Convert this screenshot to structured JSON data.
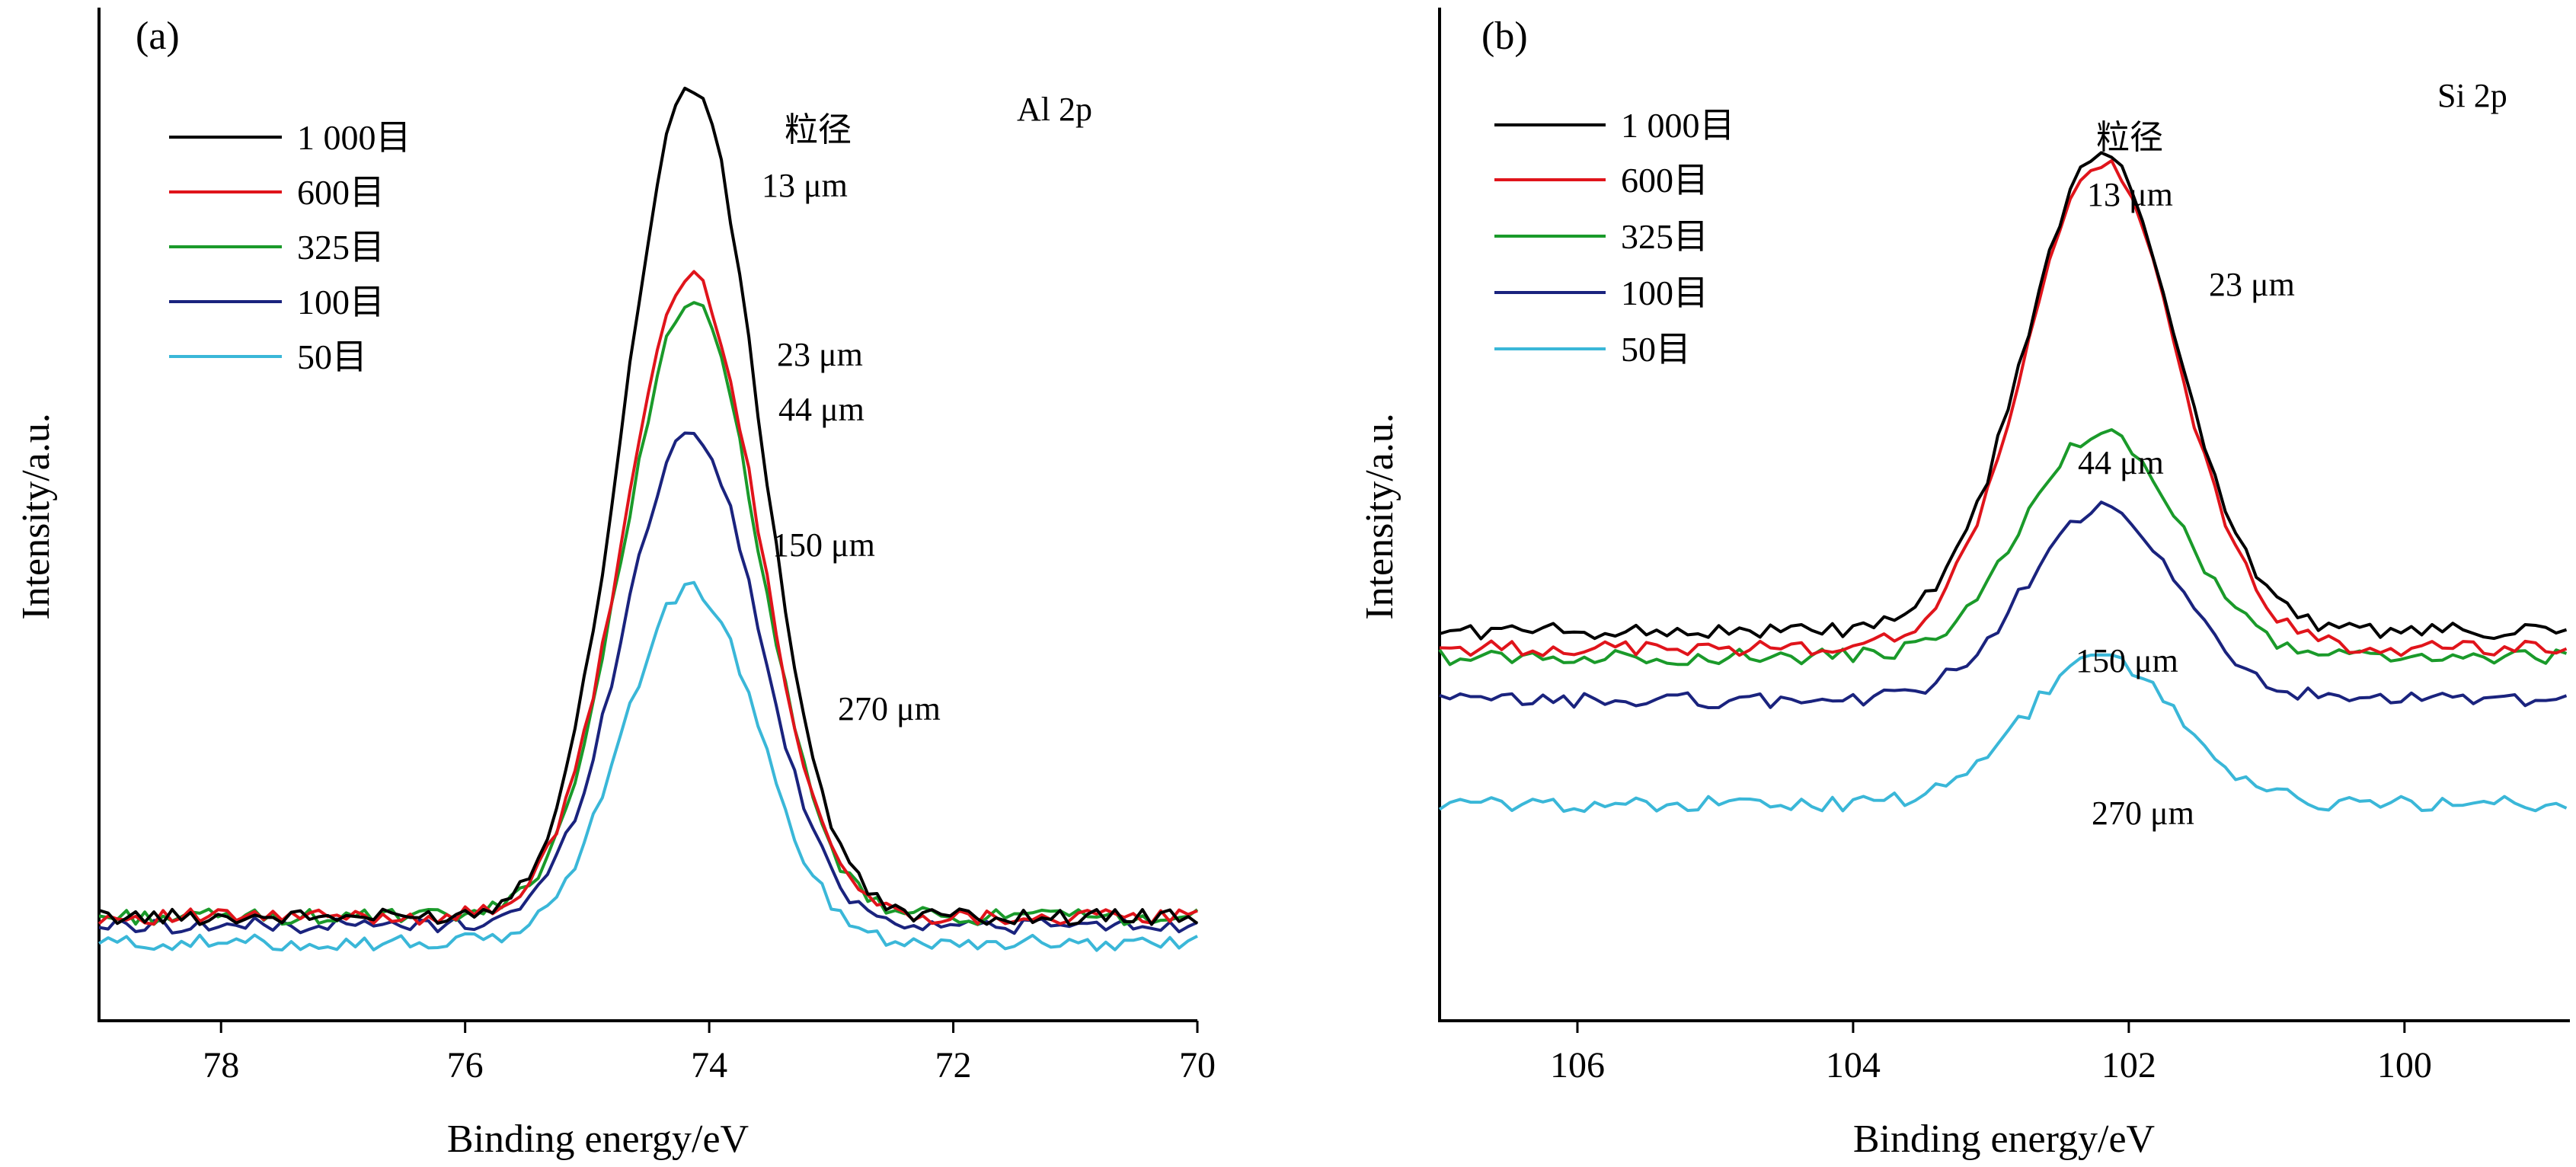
{
  "chart_data": [
    {
      "type": "line",
      "panel_label": "(a)",
      "element": "Al 2p",
      "xlabel": "Binding energy/eV",
      "ylabel": "Intensity/a.u.",
      "xlim": [
        79,
        70
      ],
      "x_reversed": true,
      "ylim": [
        -0.12,
        1.05
      ],
      "x_ticks": [
        78,
        76,
        74,
        72,
        70
      ],
      "peak_center": 74.15,
      "legend_position": "top-left",
      "annotation_header": "粒径",
      "series": [
        {
          "name": "1 000目",
          "color": "#000000",
          "peak": 0.96,
          "baseline": 0.0,
          "label": "13 μm"
        },
        {
          "name": "600目",
          "color": "#e0141b",
          "peak": 0.74,
          "baseline": 0.0,
          "label": "23 μm"
        },
        {
          "name": "325目",
          "color": "#1a9a2a",
          "peak": 0.71,
          "baseline": 0.0,
          "label": "44 μm"
        },
        {
          "name": "100目",
          "color": "#1a237e",
          "peak": 0.56,
          "baseline": -0.01,
          "label": "150 μm"
        },
        {
          "name": "50目",
          "color": "#3ab7d8",
          "peak": 0.38,
          "baseline": -0.03,
          "label": "270 μm"
        }
      ]
    },
    {
      "type": "line",
      "panel_label": "(b)",
      "element": "Si 2p",
      "xlabel": "Binding energy/eV",
      "ylabel": "Intensity/a.u.",
      "xlim": [
        107,
        98.8
      ],
      "x_reversed": true,
      "ylim": [
        -0.12,
        1.05
      ],
      "x_ticks": [
        106,
        104,
        102,
        100
      ],
      "peak_center": 102.2,
      "legend_position": "top-left",
      "annotation_header": "粒径",
      "series": [
        {
          "name": "1 000目",
          "color": "#000000",
          "peak": 0.88,
          "baseline": 0.33,
          "label": "13 μm"
        },
        {
          "name": "600目",
          "color": "#e0141b",
          "peak": 0.87,
          "baseline": 0.31,
          "label": "23 μm"
        },
        {
          "name": "325目",
          "color": "#1a9a2a",
          "peak": 0.56,
          "baseline": 0.3,
          "label": "44 μm"
        },
        {
          "name": "100目",
          "color": "#1a237e",
          "peak": 0.47,
          "baseline": 0.25,
          "label": "150 μm"
        },
        {
          "name": "50目",
          "color": "#3ab7d8",
          "peak": 0.3,
          "baseline": 0.13,
          "label": "270 μm"
        }
      ]
    }
  ]
}
